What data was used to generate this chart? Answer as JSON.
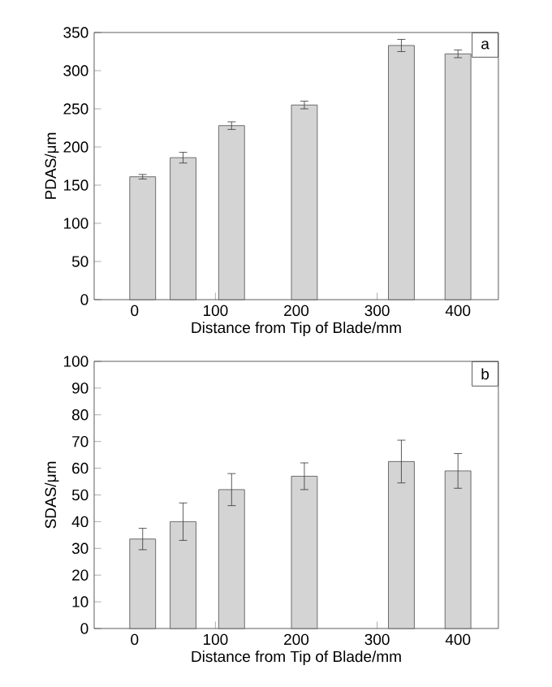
{
  "chart_data": [
    {
      "type": "bar",
      "xlabel": "Distance from Tip of Blade/mm",
      "ylabel": "PDAS/μm",
      "annotations": [
        "a"
      ],
      "color": "#d4d4d4",
      "x": [
        10,
        60,
        120,
        210,
        330,
        400
      ],
      "values": [
        161,
        186,
        228,
        255,
        333,
        322
      ],
      "errors": [
        3,
        7,
        5,
        5,
        8,
        5
      ],
      "xlim": [
        -50,
        450
      ],
      "xticks": [
        0,
        100,
        200,
        300,
        400
      ],
      "ylim": [
        0,
        350
      ],
      "yticks": [
        0,
        50,
        100,
        150,
        200,
        250,
        300,
        350
      ]
    },
    {
      "type": "bar",
      "xlabel": "Distance from Tip of Blade/mm",
      "ylabel": "SDAS/μm",
      "annotations": [
        "b"
      ],
      "color": "#d4d4d4",
      "x": [
        10,
        60,
        120,
        210,
        330,
        400
      ],
      "values": [
        33.5,
        40,
        52,
        57,
        62.5,
        59
      ],
      "errors": [
        4,
        7,
        6,
        5,
        8,
        6.5
      ],
      "xlim": [
        -50,
        450
      ],
      "xticks": [
        0,
        100,
        200,
        300,
        400
      ],
      "ylim": [
        0,
        100
      ],
      "yticks": [
        0,
        10,
        20,
        30,
        40,
        50,
        60,
        70,
        80,
        90,
        100
      ]
    }
  ]
}
